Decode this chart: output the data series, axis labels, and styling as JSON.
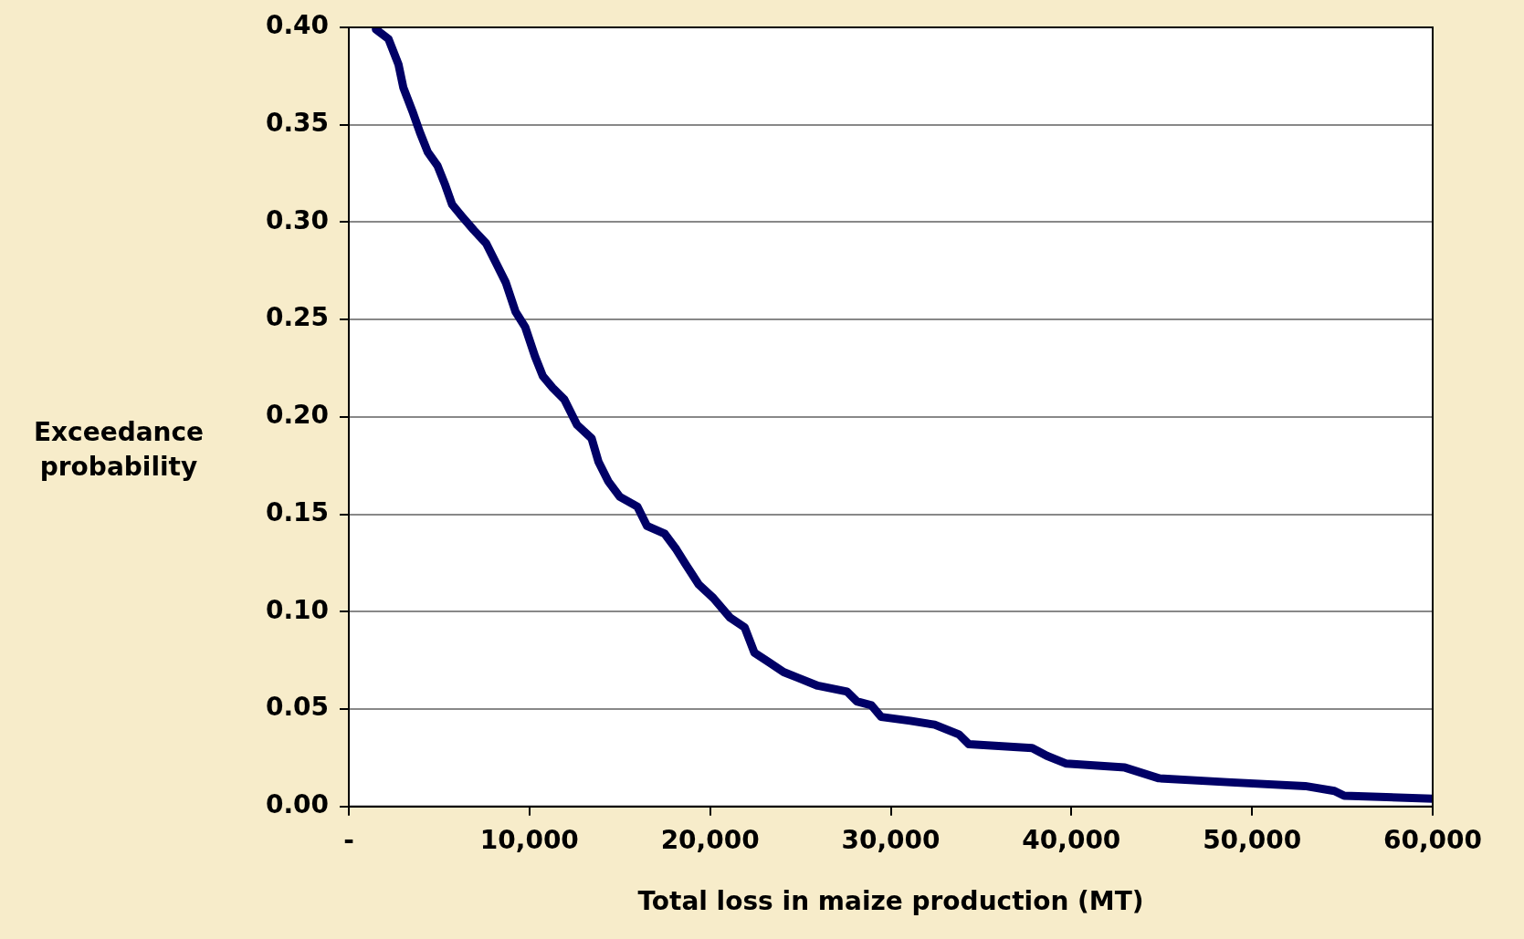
{
  "chart_data": {
    "type": "line",
    "xlabel": "Total loss in maize production (MT)",
    "ylabel": "Exceedance probability",
    "x": [
      1500,
      2200,
      2750,
      3020,
      3560,
      3940,
      4370,
      4910,
      5340,
      5720,
      6260,
      6910,
      7610,
      8150,
      8690,
      9230,
      9770,
      10310,
      10740,
      11280,
      11930,
      12630,
      13440,
      13820,
      14360,
      15000,
      15970,
      16510,
      17490,
      18130,
      18670,
      19370,
      20180,
      21100,
      21910,
      22450,
      23260,
      24070,
      24880,
      25960,
      27580,
      28120,
      28930,
      29470,
      31080,
      32430,
      33780,
      34320,
      37830,
      38640,
      39720,
      42960,
      44840,
      48620,
      52940,
      54560,
      55100,
      60000
    ],
    "series": [
      {
        "color": "#000066",
        "values": [
          0.399,
          0.394,
          0.381,
          0.369,
          0.356,
          0.346,
          0.336,
          0.329,
          0.319,
          0.309,
          0.303,
          0.296,
          0.289,
          0.279,
          0.269,
          0.254,
          0.246,
          0.231,
          0.221,
          0.215,
          0.209,
          0.196,
          0.189,
          0.177,
          0.167,
          0.159,
          0.154,
          0.144,
          0.14,
          0.132,
          0.124,
          0.114,
          0.107,
          0.097,
          0.092,
          0.079,
          0.074,
          0.069,
          0.066,
          0.062,
          0.059,
          0.054,
          0.052,
          0.046,
          0.044,
          0.042,
          0.037,
          0.032,
          0.03,
          0.026,
          0.022,
          0.02,
          0.0145,
          0.0125,
          0.0105,
          0.008,
          0.0055,
          0.004
        ]
      }
    ],
    "xlim": [
      0,
      60000
    ],
    "ylim": [
      0,
      0.4
    ],
    "xticks": [
      {
        "value": 0,
        "label": "-"
      },
      {
        "value": 10000,
        "label": "10,000"
      },
      {
        "value": 20000,
        "label": "20,000"
      },
      {
        "value": 30000,
        "label": "30,000"
      },
      {
        "value": 40000,
        "label": "40,000"
      },
      {
        "value": 50000,
        "label": "50,000"
      },
      {
        "value": 60000,
        "label": "60,000"
      }
    ],
    "yticks": [
      {
        "value": 0,
        "label": "0.00"
      },
      {
        "value": 0.05,
        "label": "0.05"
      },
      {
        "value": 0.1,
        "label": "0.10"
      },
      {
        "value": 0.15,
        "label": "0.15"
      },
      {
        "value": 0.2,
        "label": "0.20"
      },
      {
        "value": 0.25,
        "label": "0.25"
      },
      {
        "value": 0.3,
        "label": "0.30"
      },
      {
        "value": 0.35,
        "label": "0.35"
      },
      {
        "value": 0.4,
        "label": "0.40"
      }
    ],
    "grid": "y",
    "legend": false,
    "marker": "none",
    "line_style": "solid"
  }
}
